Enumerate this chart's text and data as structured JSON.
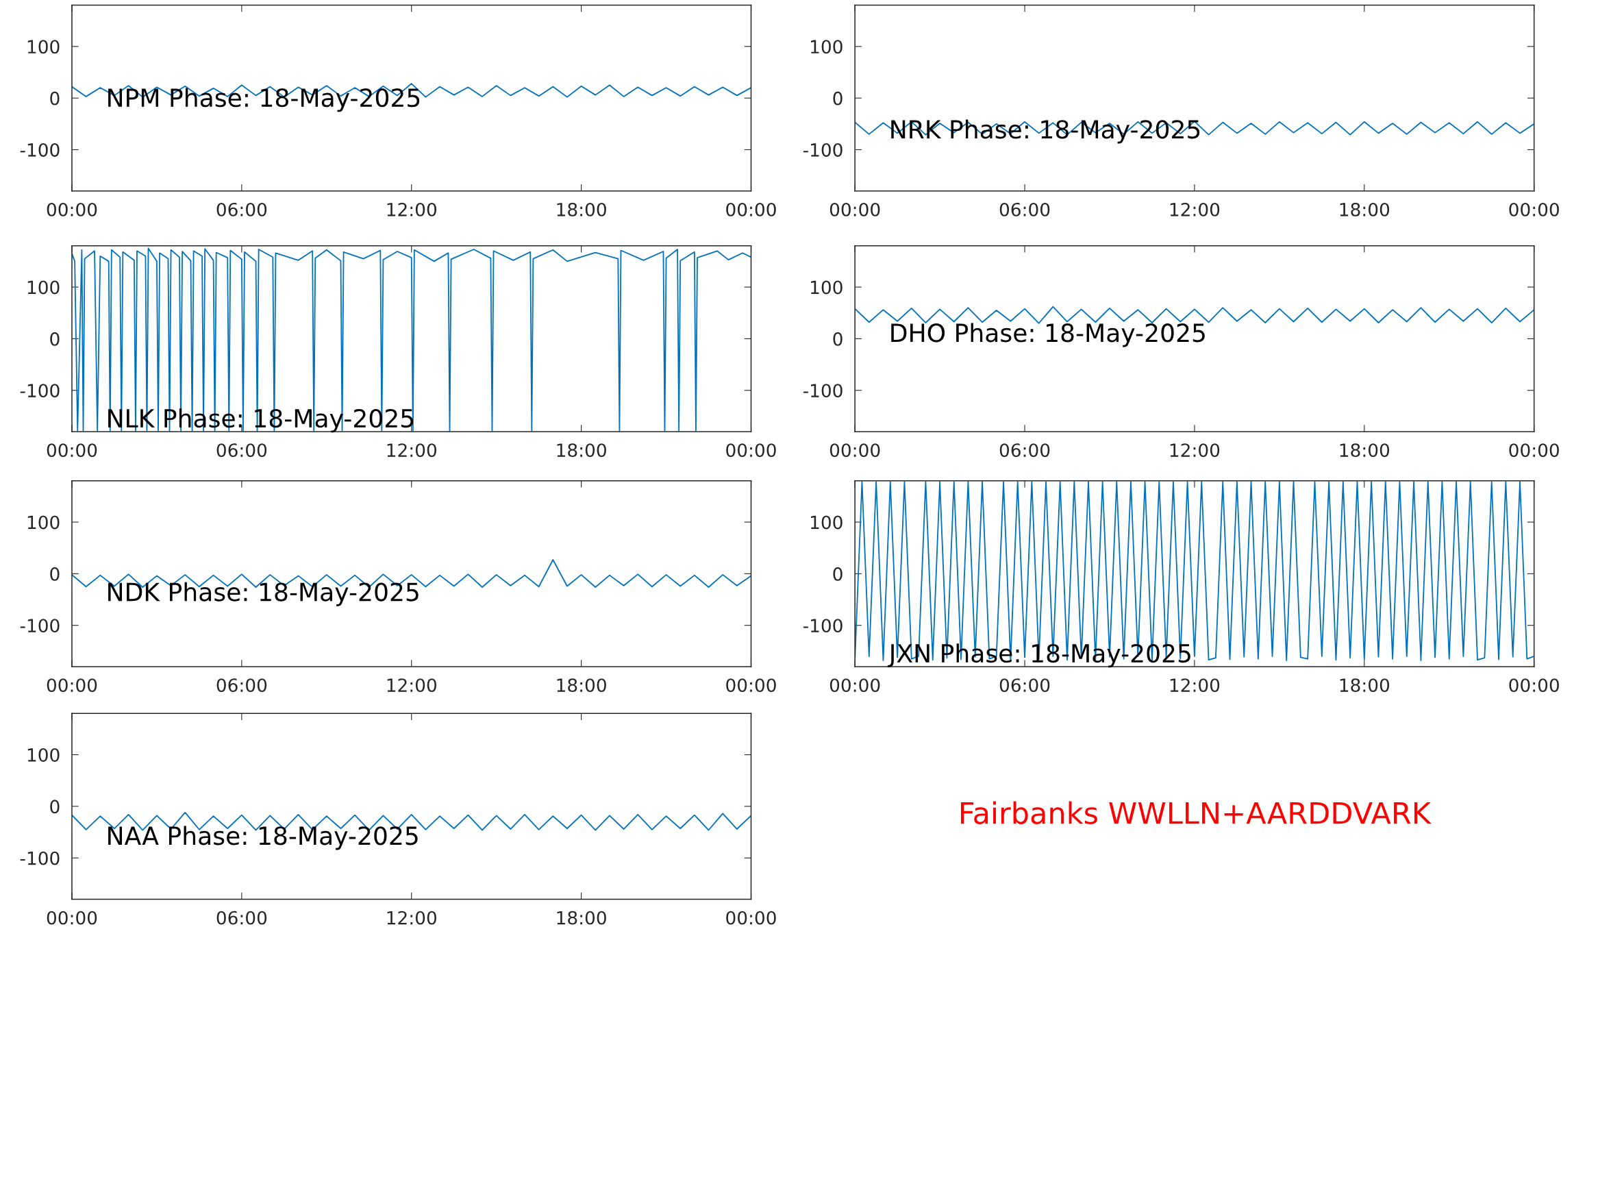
{
  "chart_data": [
    {
      "type": "line",
      "xlim": [
        0,
        24
      ],
      "ylim": [
        -180,
        180
      ],
      "yticks": [
        -100,
        0,
        100
      ],
      "xticks": [
        {
          "value": 0,
          "label": "00:00"
        },
        {
          "value": 6,
          "label": "06:00"
        },
        {
          "value": 12,
          "label": "12:00"
        },
        {
          "value": 18,
          "label": "18:00"
        },
        {
          "value": 24,
          "label": "00:00"
        }
      ],
      "x": [
        0,
        0.5,
        1,
        1.5,
        2,
        2.5,
        3,
        3.5,
        4,
        4.5,
        5,
        5.5,
        6,
        6.5,
        7,
        7.5,
        8,
        8.5,
        9,
        9.5,
        10,
        10.5,
        11,
        11.5,
        12,
        12.5,
        13,
        13.5,
        14,
        14.5,
        15,
        15.5,
        16,
        16.5,
        17,
        17.5,
        18,
        18.5,
        19,
        19.5,
        20,
        20.5,
        21,
        21.5,
        22,
        22.5,
        23,
        23.5,
        24
      ],
      "series": [
        {
          "color": "#0072bd",
          "values": [
            22,
            3,
            20,
            5,
            24,
            2,
            21,
            6,
            23,
            4,
            19,
            3,
            25,
            5,
            22,
            2,
            21,
            6,
            24,
            4,
            20,
            3,
            23,
            5,
            28,
            2,
            22,
            6,
            21,
            3,
            24,
            5,
            20,
            4,
            22,
            2,
            23,
            6,
            25,
            3,
            21,
            5,
            20,
            4,
            22,
            6,
            21,
            5,
            20
          ]
        }
      ],
      "annotations": [
        "NPM Phase: 18-May-2025"
      ]
    },
    {
      "type": "line",
      "xlim": [
        0,
        24
      ],
      "ylim": [
        -180,
        180
      ],
      "yticks": [
        -100,
        0,
        100
      ],
      "xticks": [
        {
          "value": 0,
          "label": "00:00"
        },
        {
          "value": 6,
          "label": "06:00"
        },
        {
          "value": 12,
          "label": "12:00"
        },
        {
          "value": 18,
          "label": "18:00"
        },
        {
          "value": 24,
          "label": "00:00"
        }
      ],
      "x": [
        0,
        0.5,
        1,
        1.5,
        2,
        2.5,
        3,
        3.5,
        4,
        4.5,
        5,
        5.5,
        6,
        6.5,
        7,
        7.5,
        8,
        8.5,
        9,
        9.5,
        10,
        10.5,
        11,
        11.5,
        12,
        12.5,
        13,
        13.5,
        14,
        14.5,
        15,
        15.5,
        16,
        16.5,
        17,
        17.5,
        18,
        18.5,
        19,
        19.5,
        20,
        20.5,
        21,
        21.5,
        22,
        22.5,
        23,
        23.5,
        24
      ],
      "series": [
        {
          "color": "#0072bd",
          "values": [
            -47,
            -70,
            -48,
            -68,
            -46,
            -71,
            -49,
            -67,
            -47,
            -70,
            -50,
            -69,
            -46,
            -68,
            -48,
            -71,
            -47,
            -67,
            -49,
            -70,
            -46,
            -68,
            -48,
            -69,
            -45,
            -71,
            -47,
            -68,
            -49,
            -70,
            -46,
            -67,
            -48,
            -69,
            -47,
            -71,
            -46,
            -68,
            -49,
            -70,
            -47,
            -67,
            -48,
            -69,
            -46,
            -70,
            -48,
            -68,
            -50
          ]
        }
      ],
      "annotations": [
        "NRK Phase: 18-May-2025"
      ]
    },
    {
      "type": "line",
      "xlim": [
        0,
        24
      ],
      "ylim": [
        -180,
        180
      ],
      "yticks": [
        -100,
        0,
        100
      ],
      "xticks": [
        {
          "value": 0,
          "label": "00:00"
        },
        {
          "value": 6,
          "label": "06:00"
        },
        {
          "value": 12,
          "label": "12:00"
        },
        {
          "value": 18,
          "label": "18:00"
        },
        {
          "value": 24,
          "label": "00:00"
        }
      ],
      "x": [
        0,
        0.1,
        0.2,
        0.35,
        0.4,
        0.45,
        0.8,
        0.9,
        1.0,
        1.3,
        1.35,
        1.4,
        1.7,
        1.75,
        1.8,
        2.2,
        2.25,
        2.3,
        2.6,
        2.65,
        2.7,
        3.0,
        3.05,
        3.1,
        3.4,
        3.45,
        3.5,
        3.8,
        3.85,
        3.9,
        4.2,
        4.25,
        4.3,
        4.6,
        4.65,
        4.7,
        5.0,
        5.05,
        5.1,
        5.5,
        5.55,
        5.6,
        6.0,
        6.05,
        6.1,
        6.5,
        6.55,
        6.6,
        7.1,
        7.15,
        7.2,
        8.0,
        8.5,
        8.55,
        8.6,
        9.0,
        9.5,
        9.55,
        9.6,
        10.3,
        10.9,
        10.95,
        11.0,
        11.5,
        12.0,
        12.05,
        12.1,
        12.8,
        13.3,
        13.35,
        13.4,
        14.2,
        14.8,
        14.85,
        14.9,
        15.6,
        16.2,
        16.25,
        16.3,
        17.0,
        17.5,
        18.5,
        19.3,
        19.35,
        19.4,
        20.2,
        20.9,
        20.95,
        21.0,
        21.4,
        21.45,
        21.5,
        22.0,
        22.05,
        22.1,
        22.8,
        23.2,
        23.7,
        24
      ],
      "series": [
        {
          "color": "#0072bd",
          "values": [
            165,
            150,
            -178,
            172,
            -178,
            155,
            170,
            -178,
            160,
            150,
            -178,
            172,
            158,
            -178,
            168,
            152,
            -178,
            170,
            160,
            -178,
            175,
            150,
            -178,
            166,
            155,
            -178,
            172,
            158,
            -178,
            169,
            151,
            -178,
            170,
            160,
            -178,
            174,
            152,
            -178,
            167,
            157,
            -178,
            171,
            154,
            -178,
            168,
            150,
            -178,
            173,
            158,
            -178,
            166,
            152,
            170,
            -178,
            156,
            172,
            151,
            -178,
            168,
            155,
            171,
            -178,
            153,
            169,
            157,
            -178,
            172,
            150,
            166,
            -178,
            154,
            173,
            156,
            -178,
            170,
            152,
            168,
            -178,
            155,
            172,
            150,
            167,
            155,
            -178,
            171,
            152,
            169,
            -178,
            156,
            173,
            -178,
            151,
            168,
            -178,
            157,
            170,
            153,
            166,
            158
          ]
        }
      ],
      "annotations": [
        "NLK Phase: 18-May-2025"
      ]
    },
    {
      "type": "line",
      "xlim": [
        0,
        24
      ],
      "ylim": [
        -180,
        180
      ],
      "yticks": [
        -100,
        0,
        100
      ],
      "xticks": [
        {
          "value": 0,
          "label": "00:00"
        },
        {
          "value": 6,
          "label": "06:00"
        },
        {
          "value": 12,
          "label": "12:00"
        },
        {
          "value": 18,
          "label": "18:00"
        },
        {
          "value": 24,
          "label": "00:00"
        }
      ],
      "x": [
        0,
        0.5,
        1,
        1.5,
        2,
        2.5,
        3,
        3.5,
        4,
        4.5,
        5,
        5.5,
        6,
        6.5,
        7,
        7.5,
        8,
        8.5,
        9,
        9.5,
        10,
        10.5,
        11,
        11.5,
        12,
        12.5,
        13,
        13.5,
        14,
        14.5,
        15,
        15.5,
        16,
        16.5,
        17,
        17.5,
        18,
        18.5,
        19,
        19.5,
        20,
        20.5,
        21,
        21.5,
        22,
        22.5,
        23,
        23.5,
        24
      ],
      "series": [
        {
          "color": "#0072bd",
          "values": [
            58,
            32,
            56,
            34,
            59,
            31,
            57,
            33,
            60,
            32,
            55,
            34,
            58,
            30,
            62,
            33,
            57,
            32,
            59,
            34,
            56,
            31,
            58,
            33,
            57,
            32,
            60,
            34,
            56,
            31,
            58,
            33,
            59,
            32,
            57,
            34,
            58,
            31,
            56,
            33,
            60,
            32,
            57,
            34,
            58,
            31,
            59,
            33,
            56
          ]
        }
      ],
      "annotations": [
        "DHO Phase: 18-May-2025"
      ]
    },
    {
      "type": "line",
      "xlim": [
        0,
        24
      ],
      "ylim": [
        -180,
        180
      ],
      "yticks": [
        -100,
        0,
        100
      ],
      "xticks": [
        {
          "value": 0,
          "label": "00:00"
        },
        {
          "value": 6,
          "label": "06:00"
        },
        {
          "value": 12,
          "label": "12:00"
        },
        {
          "value": 18,
          "label": "18:00"
        },
        {
          "value": 24,
          "label": "00:00"
        }
      ],
      "x": [
        0,
        0.5,
        1,
        1.5,
        2,
        2.5,
        3,
        3.5,
        4,
        4.5,
        5,
        5.5,
        6,
        6.5,
        7,
        7.5,
        8,
        8.5,
        9,
        9.5,
        10,
        10.5,
        11,
        11.5,
        12,
        12.5,
        13,
        13.5,
        14,
        14.5,
        15,
        15.5,
        16,
        16.5,
        17,
        17.5,
        18,
        18.5,
        19,
        19.5,
        20,
        20.5,
        21,
        21.5,
        22,
        22.5,
        23,
        23.5,
        24
      ],
      "series": [
        {
          "color": "#0072bd",
          "values": [
            -2,
            -25,
            -3,
            -24,
            -1,
            -26,
            -4,
            -23,
            -2,
            -25,
            -3,
            -24,
            -1,
            -26,
            -2,
            -23,
            -4,
            -25,
            -2,
            -24,
            -3,
            -26,
            -1,
            -23,
            -2,
            -25,
            -3,
            -24,
            -1,
            -26,
            -2,
            -23,
            -3,
            -25,
            27,
            -24,
            -2,
            -26,
            -3,
            -23,
            -1,
            -25,
            -2,
            -24,
            -3,
            -26,
            -2,
            -23,
            -4
          ]
        }
      ],
      "annotations": [
        "NDK Phase: 18-May-2025"
      ]
    },
    {
      "type": "line",
      "xlim": [
        0,
        24
      ],
      "ylim": [
        -180,
        180
      ],
      "yticks": [
        -100,
        0,
        100
      ],
      "xticks": [
        {
          "value": 0,
          "label": "00:00"
        },
        {
          "value": 6,
          "label": "06:00"
        },
        {
          "value": 12,
          "label": "12:00"
        },
        {
          "value": 18,
          "label": "18:00"
        },
        {
          "value": 24,
          "label": "00:00"
        }
      ],
      "x": [
        0,
        0.25,
        0.5,
        0.75,
        1,
        1.25,
        1.5,
        1.75,
        2,
        2.25,
        2.5,
        2.75,
        3,
        3.25,
        3.5,
        3.75,
        4,
        4.25,
        4.5,
        4.75,
        5,
        5.25,
        5.5,
        5.75,
        6,
        6.25,
        6.5,
        6.75,
        7,
        7.25,
        7.5,
        7.75,
        8,
        8.25,
        8.5,
        8.75,
        9,
        9.25,
        9.5,
        9.75,
        10,
        10.25,
        10.5,
        10.75,
        11,
        11.25,
        11.5,
        11.75,
        12,
        12.25,
        12.5,
        12.75,
        13,
        13.25,
        13.5,
        13.75,
        14,
        14.25,
        14.5,
        14.75,
        15,
        15.25,
        15.5,
        15.75,
        16,
        16.25,
        16.5,
        16.75,
        17,
        17.25,
        17.5,
        17.75,
        18,
        18.25,
        18.5,
        18.75,
        19,
        19.25,
        19.5,
        19.75,
        20,
        20.25,
        20.5,
        20.75,
        21,
        21.25,
        21.5,
        21.75,
        22,
        22.25,
        22.5,
        22.75,
        23,
        23.25,
        23.5,
        23.75,
        24
      ],
      "series": [
        {
          "color": "#0072bd",
          "values": [
            -165,
            178,
            -160,
            178,
            -168,
            178,
            -162,
            178,
            -165,
            -160,
            178,
            -167,
            178,
            -163,
            178,
            -166,
            178,
            -161,
            178,
            -165,
            -160,
            178,
            -168,
            178,
            -162,
            178,
            -165,
            178,
            -160,
            178,
            -167,
            178,
            -163,
            178,
            -166,
            178,
            -161,
            178,
            -165,
            178,
            -160,
            178,
            -168,
            178,
            -162,
            178,
            -165,
            178,
            -160,
            178,
            -167,
            -163,
            178,
            -166,
            178,
            -161,
            178,
            -165,
            178,
            -160,
            178,
            -168,
            178,
            -162,
            -165,
            178,
            -160,
            178,
            -167,
            178,
            -163,
            178,
            -166,
            178,
            -161,
            178,
            -165,
            178,
            -160,
            178,
            -168,
            178,
            -162,
            178,
            -165,
            178,
            -160,
            178,
            -167,
            -163,
            178,
            -166,
            178,
            -161,
            178,
            -165,
            -160
          ]
        }
      ],
      "annotations": [
        "JXN Phase: 18-May-2025"
      ]
    },
    {
      "type": "line",
      "xlim": [
        0,
        24
      ],
      "ylim": [
        -180,
        180
      ],
      "yticks": [
        -100,
        0,
        100
      ],
      "xticks": [
        {
          "value": 0,
          "label": "00:00"
        },
        {
          "value": 6,
          "label": "06:00"
        },
        {
          "value": 12,
          "label": "12:00"
        },
        {
          "value": 18,
          "label": "18:00"
        },
        {
          "value": 24,
          "label": "00:00"
        }
      ],
      "x": [
        0,
        0.5,
        1,
        1.5,
        2,
        2.5,
        3,
        3.5,
        4,
        4.5,
        5,
        5.5,
        6,
        6.5,
        7,
        7.5,
        8,
        8.5,
        9,
        9.5,
        10,
        10.5,
        11,
        11.5,
        12,
        12.5,
        13,
        13.5,
        14,
        14.5,
        15,
        15.5,
        16,
        16.5,
        17,
        17.5,
        18,
        18.5,
        19,
        19.5,
        20,
        20.5,
        21,
        21.5,
        22,
        22.5,
        23,
        23.5,
        24
      ],
      "series": [
        {
          "color": "#0072bd",
          "values": [
            -17,
            -45,
            -19,
            -43,
            -16,
            -46,
            -18,
            -44,
            -12,
            -45,
            -19,
            -43,
            -17,
            -46,
            -18,
            -44,
            -16,
            -45,
            -19,
            -43,
            -17,
            -46,
            -18,
            -44,
            -16,
            -45,
            -19,
            -43,
            -17,
            -46,
            -18,
            -44,
            -16,
            -45,
            -19,
            -43,
            -17,
            -46,
            -18,
            -44,
            -16,
            -45,
            -19,
            -43,
            -17,
            -46,
            -14,
            -44,
            -18
          ]
        }
      ],
      "annotations": [
        "NAA Phase: 18-May-2025"
      ]
    },
    {
      "type": "other",
      "title": "Fairbanks WWLLN+AARDDVARK",
      "color": "#ff0000"
    }
  ]
}
